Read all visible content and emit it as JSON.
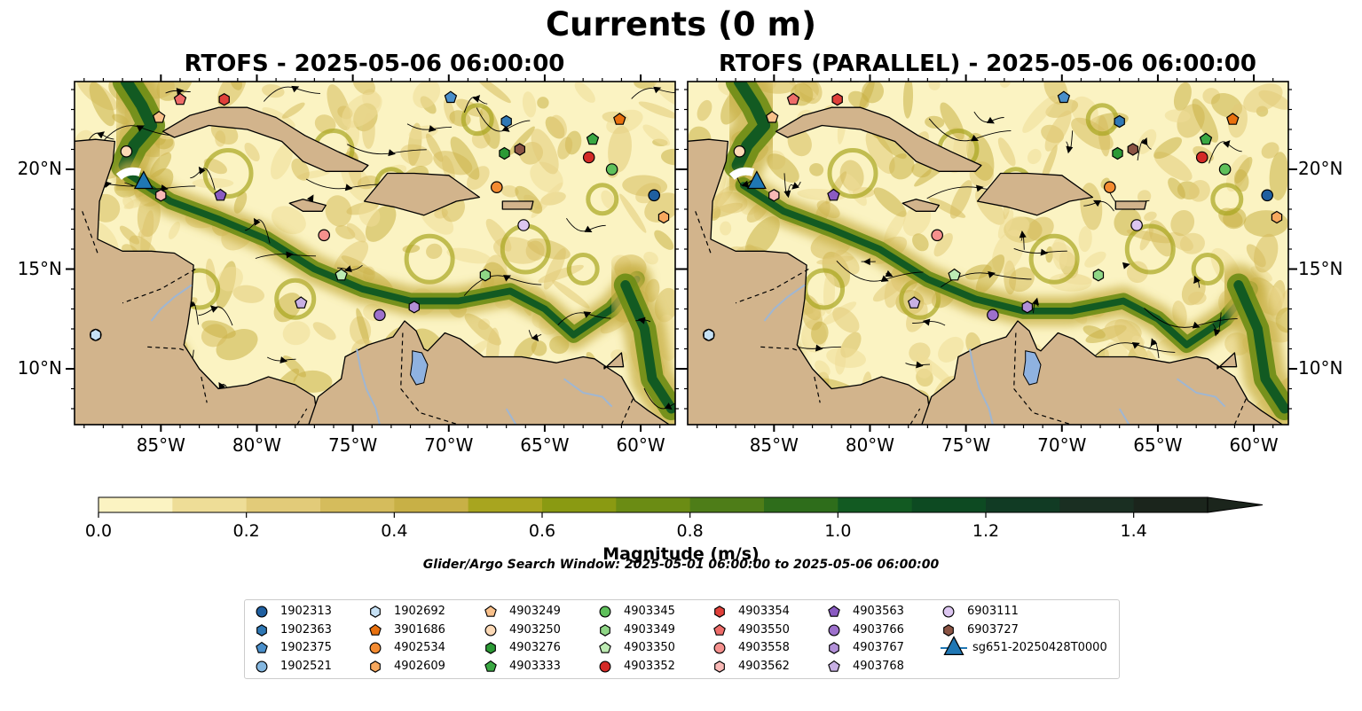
{
  "title": "Currents (0 m)",
  "panels": [
    {
      "title": "RTOFS - 2025-05-06 06:00:00"
    },
    {
      "title": "RTOFS (PARALLEL) - 2025-05-06 06:00:00"
    }
  ],
  "lon_ticks": [
    "85°W",
    "80°W",
    "75°W",
    "70°W",
    "65°W",
    "60°W"
  ],
  "lon_values": [
    -85,
    -80,
    -75,
    -70,
    -65,
    -60
  ],
  "lat_ticks": [
    "20°N",
    "15°N",
    "10°N"
  ],
  "lat_values": [
    20,
    15,
    10
  ],
  "extent": {
    "lon": [
      -89.5,
      -58.2
    ],
    "lat": [
      7.2,
      24.4
    ]
  },
  "colorbar": {
    "label": "Magnitude (m/s)",
    "ticks": [
      "0.0",
      "0.2",
      "0.4",
      "0.6",
      "0.8",
      "1.0",
      "1.2",
      "1.4"
    ],
    "tick_values": [
      0,
      0.2,
      0.4,
      0.6,
      0.8,
      1.0,
      1.2,
      1.4
    ],
    "range": [
      0,
      1.5
    ],
    "extend": "max",
    "colors": [
      "#fbf3c2",
      "#eedd97",
      "#e2cb79",
      "#d5bc5c",
      "#c8b046",
      "#a8a51f",
      "#8a9a12",
      "#6b8c14",
      "#4e7d18",
      "#2e6d1b",
      "#125a22",
      "#0d4a22",
      "#113b24",
      "#1a2f22",
      "#1b251c"
    ]
  },
  "search_window": "Glider/Argo Search Window: 2025-05-01 06:00:00 to 2025-05-06 06:00:00",
  "legend": {
    "columns": [
      [
        {
          "label": "1902313",
          "color": "#1f5fa0",
          "shape": "circle"
        },
        {
          "label": "1902363",
          "color": "#2f78b5",
          "shape": "hexagon"
        },
        {
          "label": "1902375",
          "color": "#4a8fcb",
          "shape": "pentagon"
        },
        {
          "label": "1902521",
          "color": "#84b7e0",
          "shape": "circle"
        }
      ],
      [
        {
          "label": "1902692",
          "color": "#c6e1f5",
          "shape": "hexagon"
        },
        {
          "label": "3901686",
          "color": "#e8700e",
          "shape": "pentagon"
        },
        {
          "label": "4902534",
          "color": "#f48b31",
          "shape": "circle"
        },
        {
          "label": "4902609",
          "color": "#f7a85e",
          "shape": "hexagon"
        }
      ],
      [
        {
          "label": "4903249",
          "color": "#f9c08a",
          "shape": "pentagon"
        },
        {
          "label": "4903250",
          "color": "#fcd9b6",
          "shape": "circle"
        },
        {
          "label": "4903276",
          "color": "#2b9a35",
          "shape": "hexagon"
        },
        {
          "label": "4903333",
          "color": "#3aa843",
          "shape": "pentagon"
        }
      ],
      [
        {
          "label": "4903345",
          "color": "#5fc05b",
          "shape": "circle"
        },
        {
          "label": "4903349",
          "color": "#8fd686",
          "shape": "hexagon"
        },
        {
          "label": "4903350",
          "color": "#bdebb3",
          "shape": "pentagon"
        },
        {
          "label": "4903352",
          "color": "#d42a26",
          "shape": "circle"
        }
      ],
      [
        {
          "label": "4903354",
          "color": "#e0403a",
          "shape": "hexagon"
        },
        {
          "label": "4903550",
          "color": "#ee6c69",
          "shape": "pentagon"
        },
        {
          "label": "4903558",
          "color": "#f5908d",
          "shape": "circle"
        },
        {
          "label": "4903562",
          "color": "#f9b9b6",
          "shape": "hexagon"
        }
      ],
      [
        {
          "label": "4903563",
          "color": "#8a5bc2",
          "shape": "pentagon"
        },
        {
          "label": "4903766",
          "color": "#9d70cc",
          "shape": "circle"
        },
        {
          "label": "4903767",
          "color": "#b290d8",
          "shape": "hexagon"
        },
        {
          "label": "4903768",
          "color": "#c8b0e4",
          "shape": "pentagon"
        }
      ],
      [
        {
          "label": "6903111",
          "color": "#dcc6f0",
          "shape": "circle"
        },
        {
          "label": "6903727",
          "color": "#8b5444",
          "shape": "hexagon"
        },
        {
          "label": "sg651-20250428T0000",
          "color": "#1f77b4",
          "shape": "triangle"
        }
      ]
    ]
  }
}
